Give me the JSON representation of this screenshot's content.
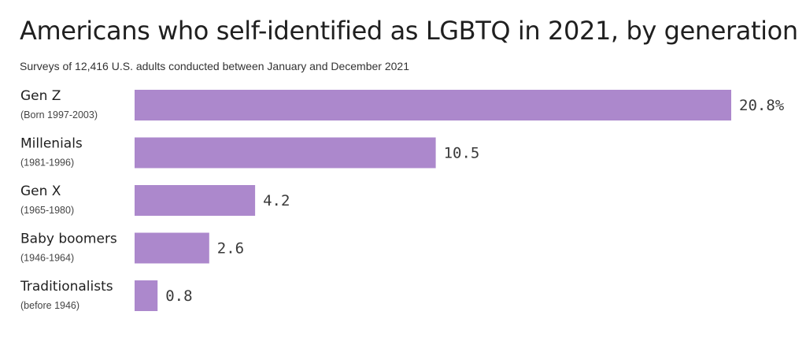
{
  "chart_data": {
    "type": "bar",
    "orientation": "horizontal",
    "title": "Americans who self-identified as LGBTQ in 2021, by generation",
    "subtitle": "Surveys of 12,416 U.S. adults conducted between January and December 2021",
    "categories": [
      "Gen Z",
      "Millenials",
      "Gen X",
      "Baby boomers",
      "Traditionalists"
    ],
    "category_sublabels": [
      "(Born 1997-2003)",
      "(1981-1996)",
      "(1965-1980)",
      "(1946-1964)",
      "(before 1946)"
    ],
    "values": [
      20.8,
      10.5,
      4.2,
      2.6,
      0.8
    ],
    "value_labels": [
      "20.8%",
      "10.5",
      "4.2",
      "2.6",
      "0.8"
    ],
    "unit": "%",
    "xlim": [
      0,
      20.8
    ],
    "bar_color": "#ac88cc",
    "grid": false,
    "xlabel": "",
    "ylabel": ""
  }
}
